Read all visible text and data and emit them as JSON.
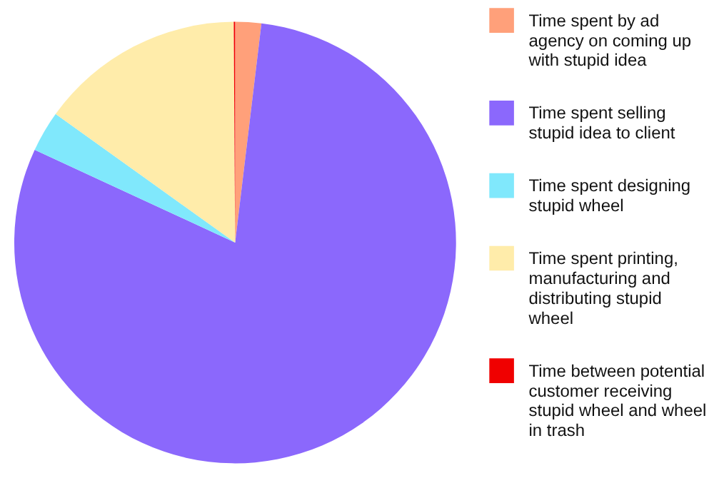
{
  "chart_data": {
    "type": "pie",
    "categories": [
      "Time spent by ad agency on coming up with stupid idea",
      "Time spent selling stupid idea to client",
      "Time spent designing stupid wheel",
      "Time spent printing, manufacturing and distributing stupid wheel",
      "Time between potential customer receiving stupid wheel and wheel in trash"
    ],
    "values": [
      1.9,
      80.0,
      3.0,
      15.0,
      0.1
    ],
    "colors": [
      "#ffa07a",
      "#8b68fc",
      "#80e8fc",
      "#ffecaa",
      "#f00000"
    ],
    "legend": "right"
  }
}
